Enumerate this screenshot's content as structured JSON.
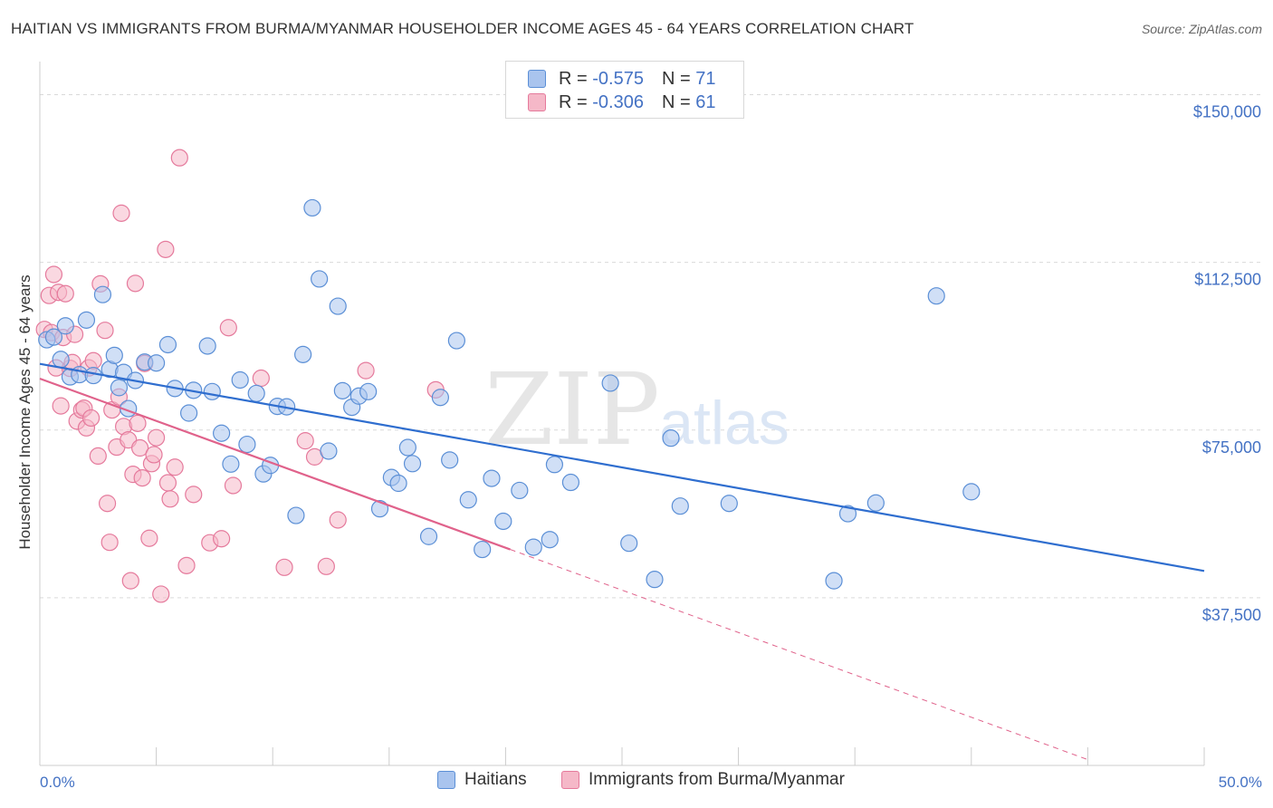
{
  "header": {
    "title": "HAITIAN VS IMMIGRANTS FROM BURMA/MYANMAR HOUSEHOLDER INCOME AGES 45 - 64 YEARS CORRELATION CHART",
    "source": "Source: ZipAtlas.com"
  },
  "watermark": {
    "zip": "ZIP",
    "atlas": "atlas"
  },
  "legend": {
    "r_label": "R =",
    "n_label": "N =",
    "series": [
      {
        "r": "-0.575",
        "n": "71"
      },
      {
        "r": "-0.306",
        "n": "61"
      }
    ]
  },
  "colors": {
    "haitians_fill": "#a9c4ee",
    "haitians_stroke": "#5b8fd6",
    "haitians_line": "#2f6ecf",
    "burma_fill": "#f5b8c8",
    "burma_stroke": "#e57a9c",
    "burma_line": "#e0628b",
    "axis_text": "#4472c4",
    "grid": "#d9d9d9"
  },
  "chart_data": {
    "type": "scatter",
    "title": "HAITIAN VS IMMIGRANTS FROM BURMA/MYANMAR HOUSEHOLDER INCOME AGES 45 - 64 YEARS CORRELATION CHART",
    "xlabel": "",
    "ylabel": "Householder Income Ages 45 - 64 years",
    "xlim": [
      0,
      50
    ],
    "ylim": [
      0,
      157000
    ],
    "x_tick_labels": {
      "left": "0.0%",
      "right": "50.0%"
    },
    "y_ticks": [
      37500,
      75000,
      112500,
      150000
    ],
    "y_tick_labels": [
      "$37,500",
      "$75,000",
      "$112,500",
      "$150,000"
    ],
    "grid": true,
    "legend_position": "bottom",
    "series": [
      {
        "name": "Haitians",
        "r": -0.575,
        "n": 71,
        "trend": {
          "x": [
            0,
            50
          ],
          "y": [
            89800,
            43500
          ]
        },
        "points": [
          [
            0.3,
            95200
          ],
          [
            0.6,
            95800
          ],
          [
            0.9,
            90800
          ],
          [
            1.1,
            98300
          ],
          [
            1.3,
            86900
          ],
          [
            1.7,
            87400
          ],
          [
            2.0,
            99600
          ],
          [
            2.3,
            87200
          ],
          [
            2.7,
            105300
          ],
          [
            3.0,
            88600
          ],
          [
            3.2,
            91700
          ],
          [
            3.4,
            84500
          ],
          [
            3.6,
            87900
          ],
          [
            3.8,
            79800
          ],
          [
            4.1,
            86100
          ],
          [
            4.5,
            90200
          ],
          [
            5.0,
            90000
          ],
          [
            5.5,
            94100
          ],
          [
            5.8,
            84300
          ],
          [
            6.4,
            78800
          ],
          [
            6.6,
            83900
          ],
          [
            7.2,
            93800
          ],
          [
            7.4,
            83600
          ],
          [
            7.8,
            74300
          ],
          [
            8.2,
            67400
          ],
          [
            8.6,
            86200
          ],
          [
            8.9,
            71800
          ],
          [
            9.3,
            83200
          ],
          [
            9.6,
            65200
          ],
          [
            9.9,
            67100
          ],
          [
            10.2,
            80300
          ],
          [
            10.6,
            80200
          ],
          [
            11.0,
            55900
          ],
          [
            11.3,
            91900
          ],
          [
            11.7,
            124700
          ],
          [
            12.0,
            108800
          ],
          [
            12.4,
            70300
          ],
          [
            12.8,
            102700
          ],
          [
            13.0,
            83800
          ],
          [
            13.4,
            80100
          ],
          [
            13.7,
            82600
          ],
          [
            14.1,
            83600
          ],
          [
            14.6,
            57400
          ],
          [
            15.1,
            64400
          ],
          [
            15.4,
            63100
          ],
          [
            15.8,
            71100
          ],
          [
            16.0,
            67500
          ],
          [
            16.7,
            51200
          ],
          [
            17.2,
            82300
          ],
          [
            17.6,
            68300
          ],
          [
            17.9,
            95000
          ],
          [
            18.4,
            59400
          ],
          [
            19.0,
            48300
          ],
          [
            19.4,
            64200
          ],
          [
            19.9,
            54600
          ],
          [
            20.6,
            61500
          ],
          [
            21.2,
            48800
          ],
          [
            21.9,
            50500
          ],
          [
            22.1,
            67300
          ],
          [
            22.8,
            63300
          ],
          [
            24.5,
            85500
          ],
          [
            25.3,
            49700
          ],
          [
            26.4,
            41600
          ],
          [
            27.1,
            73200
          ],
          [
            27.5,
            58000
          ],
          [
            29.6,
            58600
          ],
          [
            34.1,
            41300
          ],
          [
            34.7,
            56300
          ],
          [
            35.9,
            58700
          ],
          [
            38.5,
            105000
          ],
          [
            40.0,
            61200
          ]
        ]
      },
      {
        "name": "Immigrants from Burma/Myanmar",
        "r": -0.306,
        "n": 61,
        "trend": {
          "x": [
            0,
            20.2
          ],
          "y": [
            86500,
            48300
          ]
        },
        "trend_dashed": {
          "x": [
            20.2,
            45.0
          ],
          "y": [
            48300,
            1300
          ]
        },
        "points": [
          [
            0.2,
            97500
          ],
          [
            0.4,
            105100
          ],
          [
            0.5,
            96800
          ],
          [
            0.6,
            109800
          ],
          [
            0.7,
            88900
          ],
          [
            0.8,
            105800
          ],
          [
            0.9,
            80400
          ],
          [
            1.0,
            95700
          ],
          [
            1.1,
            105500
          ],
          [
            1.3,
            88800
          ],
          [
            1.4,
            90100
          ],
          [
            1.5,
            96400
          ],
          [
            1.6,
            77000
          ],
          [
            1.8,
            79500
          ],
          [
            1.9,
            79900
          ],
          [
            2.0,
            75500
          ],
          [
            2.1,
            88900
          ],
          [
            2.2,
            77700
          ],
          [
            2.3,
            90500
          ],
          [
            2.5,
            69200
          ],
          [
            2.6,
            107700
          ],
          [
            2.8,
            97300
          ],
          [
            2.9,
            58600
          ],
          [
            3.0,
            49900
          ],
          [
            3.1,
            79500
          ],
          [
            3.3,
            71200
          ],
          [
            3.4,
            82400
          ],
          [
            3.5,
            123500
          ],
          [
            3.6,
            75800
          ],
          [
            3.8,
            72800
          ],
          [
            3.9,
            41300
          ],
          [
            4.0,
            65100
          ],
          [
            4.1,
            107800
          ],
          [
            4.2,
            76500
          ],
          [
            4.3,
            71000
          ],
          [
            4.4,
            64300
          ],
          [
            4.5,
            89900
          ],
          [
            4.7,
            50800
          ],
          [
            4.8,
            67500
          ],
          [
            4.9,
            69500
          ],
          [
            5.0,
            73300
          ],
          [
            5.2,
            38300
          ],
          [
            5.4,
            115400
          ],
          [
            5.5,
            63200
          ],
          [
            5.6,
            59600
          ],
          [
            5.8,
            66700
          ],
          [
            6.0,
            135900
          ],
          [
            6.3,
            44700
          ],
          [
            6.6,
            60600
          ],
          [
            7.3,
            49800
          ],
          [
            7.8,
            50700
          ],
          [
            8.1,
            97900
          ],
          [
            8.3,
            62600
          ],
          [
            9.5,
            86600
          ],
          [
            10.5,
            44300
          ],
          [
            11.4,
            72600
          ],
          [
            11.8,
            69000
          ],
          [
            12.3,
            44500
          ],
          [
            12.8,
            54900
          ],
          [
            14.0,
            88300
          ],
          [
            17.0,
            84000
          ]
        ]
      }
    ]
  }
}
